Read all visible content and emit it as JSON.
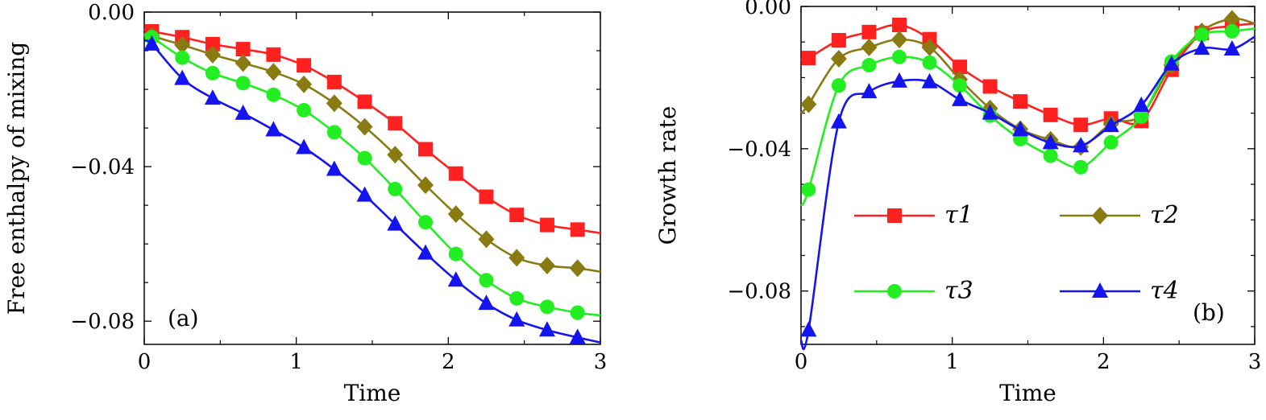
{
  "colors": {
    "tau1": "#ff2020",
    "tau2": "#8a7a12",
    "tau3": "#22ee22",
    "tau4": "#1414ee"
  },
  "chart_data": [
    {
      "type": "line",
      "panel_label": "(a)",
      "xlabel": "Time",
      "ylabel": "Free enthalpy of mixing",
      "xlim": [
        0,
        3
      ],
      "ylim": [
        -0.086,
        0.0
      ],
      "xticks": [
        "0",
        "1",
        "2",
        "3"
      ],
      "yticks": [
        "0.00",
        "−0.04",
        "−0.08"
      ],
      "ytick_values": [
        0.0,
        -0.04,
        -0.08
      ],
      "x": [
        0.05,
        0.25,
        0.45,
        0.65,
        0.85,
        1.05,
        1.25,
        1.45,
        1.65,
        1.85,
        2.05,
        2.25,
        2.45,
        2.65,
        2.85
      ],
      "series": [
        {
          "name": "τ1",
          "marker": "square",
          "values": [
            -0.005,
            -0.0065,
            -0.0083,
            -0.0096,
            -0.011,
            -0.0138,
            -0.0181,
            -0.0232,
            -0.0288,
            -0.0355,
            -0.0418,
            -0.0478,
            -0.0525,
            -0.0551,
            -0.0563
          ]
        },
        {
          "name": "τ2",
          "marker": "diamond",
          "values": [
            -0.0062,
            -0.0085,
            -0.011,
            -0.0132,
            -0.0155,
            -0.0187,
            -0.0236,
            -0.0297,
            -0.0369,
            -0.0448,
            -0.0523,
            -0.0588,
            -0.0636,
            -0.0656,
            -0.0663
          ]
        },
        {
          "name": "τ3",
          "marker": "circle",
          "values": [
            -0.0065,
            -0.0118,
            -0.0158,
            -0.0184,
            -0.0214,
            -0.0254,
            -0.0311,
            -0.0378,
            -0.0458,
            -0.0544,
            -0.0626,
            -0.0694,
            -0.0741,
            -0.0763,
            -0.0778
          ]
        },
        {
          "name": "τ4",
          "marker": "triangle",
          "values": [
            -0.0083,
            -0.0172,
            -0.0223,
            -0.0262,
            -0.0305,
            -0.0351,
            -0.0407,
            -0.0474,
            -0.0549,
            -0.0624,
            -0.0694,
            -0.0754,
            -0.0797,
            -0.0823,
            -0.0842
          ]
        }
      ]
    },
    {
      "type": "line",
      "panel_label": "(b)",
      "xlabel": "Time",
      "ylabel": "Growth rate",
      "xlim": [
        0,
        3
      ],
      "ylim": [
        -0.095,
        0.0
      ],
      "xticks": [
        "0",
        "1",
        "2",
        "3"
      ],
      "yticks": [
        "0.00",
        "−0.04",
        "−0.08"
      ],
      "ytick_values": [
        0.0,
        -0.04,
        -0.08
      ],
      "x": [
        0.05,
        0.25,
        0.45,
        0.65,
        0.85,
        1.05,
        1.25,
        1.45,
        1.65,
        1.85,
        2.05,
        2.25,
        2.45,
        2.65,
        2.85
      ],
      "series": [
        {
          "name": "τ1",
          "marker": "square",
          "values": [
            -0.0145,
            -0.0095,
            -0.0072,
            -0.0052,
            -0.0092,
            -0.017,
            -0.0225,
            -0.0267,
            -0.0305,
            -0.0333,
            -0.0315,
            -0.0322,
            -0.0178,
            -0.0075,
            -0.0055
          ]
        },
        {
          "name": "τ2",
          "marker": "diamond",
          "values": [
            -0.0275,
            -0.0147,
            -0.0115,
            -0.0093,
            -0.0115,
            -0.0205,
            -0.0287,
            -0.0345,
            -0.0375,
            -0.0395,
            -0.033,
            -0.0305,
            -0.0165,
            -0.007,
            -0.0035
          ]
        },
        {
          "name": "τ3",
          "marker": "circle",
          "values": [
            -0.0515,
            -0.0222,
            -0.0165,
            -0.0142,
            -0.0158,
            -0.0222,
            -0.0307,
            -0.0373,
            -0.042,
            -0.0452,
            -0.0382,
            -0.031,
            -0.0155,
            -0.008,
            -0.007
          ]
        },
        {
          "name": "τ4",
          "marker": "triangle",
          "values": [
            -0.091,
            -0.0325,
            -0.024,
            -0.021,
            -0.0212,
            -0.0262,
            -0.03,
            -0.0347,
            -0.0383,
            -0.0392,
            -0.0335,
            -0.0278,
            -0.0162,
            -0.0118,
            -0.012
          ]
        }
      ],
      "legend": {
        "placement": "center",
        "entries": [
          "τ1",
          "τ2",
          "τ3",
          "τ4"
        ]
      }
    }
  ]
}
